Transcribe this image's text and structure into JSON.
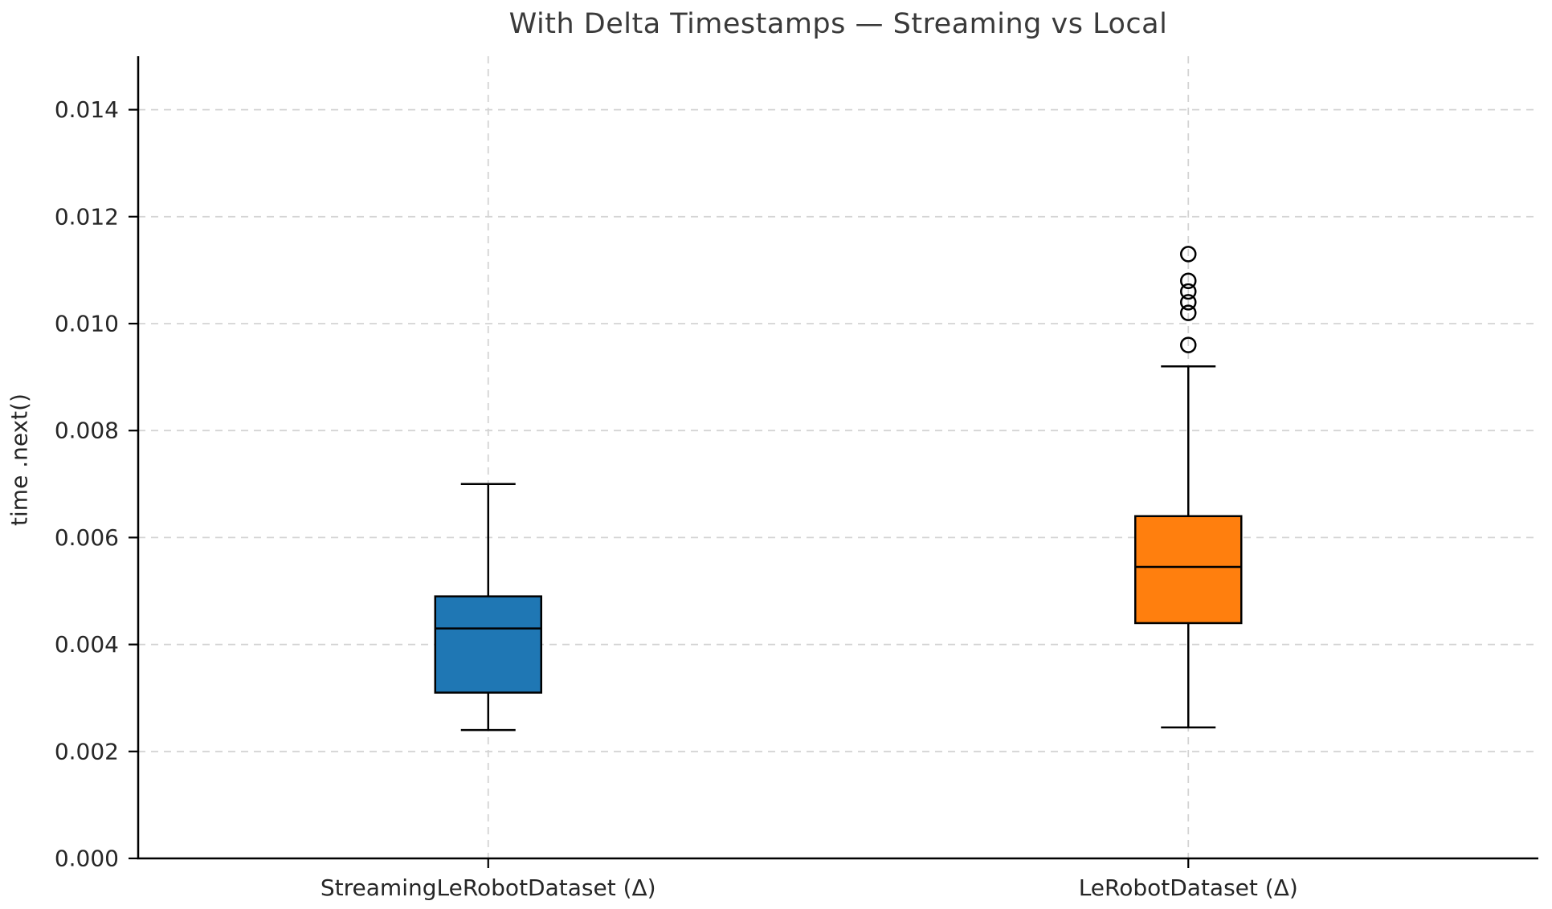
{
  "title": "With Delta Timestamps — Streaming vs Local",
  "colors": {
    "background": "#ffffff",
    "streaming_box_fill": "#1f77b4",
    "local_box_fill": "#ff7f0e",
    "box_edge": "#000000",
    "median_line": "#000000",
    "whisker": "#000000",
    "outlier_edge": "#000000",
    "grid": "#d4d4d4",
    "axis_spine": "#000000",
    "tick_text": "#262626",
    "title_text": "#3a3a3a"
  },
  "chart_data": {
    "type": "boxplot",
    "title": "With Delta Timestamps — Streaming vs Local",
    "xlabel": "",
    "ylabel": "time .next()",
    "categories": [
      "StreamingLeRobotDataset (Δ)",
      "LeRobotDataset (Δ)"
    ],
    "ylim": [
      0.0,
      0.015
    ],
    "yticks": [
      0.0,
      0.002,
      0.004,
      0.006,
      0.008,
      0.01,
      0.012,
      0.014
    ],
    "ytick_labels": [
      "0.000",
      "0.002",
      "0.004",
      "0.006",
      "0.008",
      "0.010",
      "0.012",
      "0.014"
    ],
    "grid": "dashed-both-axes",
    "legend": "none",
    "spines": "left-and-bottom-only",
    "series": [
      {
        "name": "StreamingLeRobotDataset (Δ)",
        "fill_color": "#1f77b4",
        "whisker_low": 0.0024,
        "q1": 0.0031,
        "median": 0.0043,
        "q3": 0.0049,
        "whisker_high": 0.007,
        "outliers": []
      },
      {
        "name": "LeRobotDataset (Δ)",
        "fill_color": "#ff7f0e",
        "whisker_low": 0.00245,
        "q1": 0.0044,
        "median": 0.00545,
        "q3": 0.0064,
        "whisker_high": 0.0092,
        "outliers": [
          0.0096,
          0.0102,
          0.0104,
          0.0106,
          0.0108,
          0.0113
        ]
      }
    ]
  }
}
